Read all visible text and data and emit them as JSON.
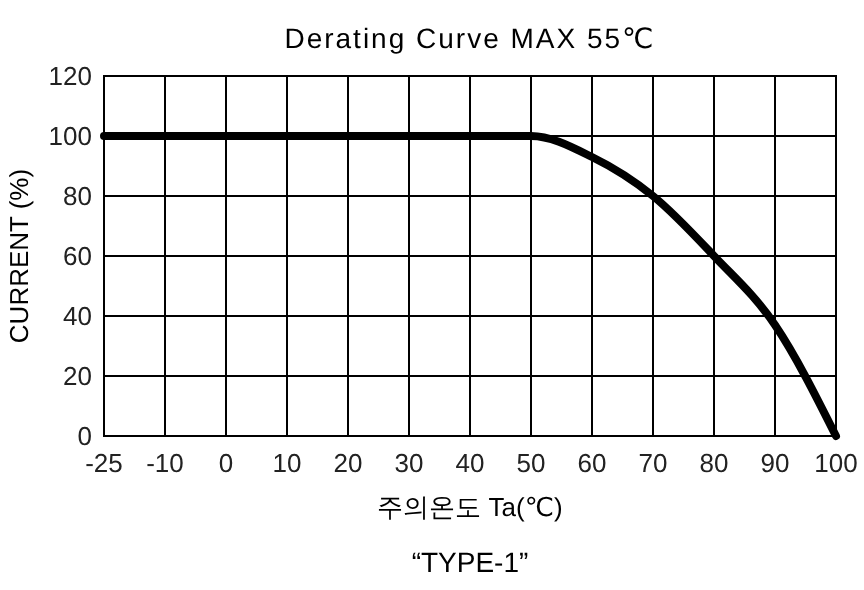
{
  "chart_data": {
    "type": "line",
    "title": "Derating Curve MAX 55℃",
    "xlabel": "주의온도 Ta(℃)",
    "ylabel": "CURRENT (%)",
    "annotations": [
      "“TYPE-1”"
    ],
    "categories": [
      "-25",
      "-10",
      "0",
      "10",
      "20",
      "30",
      "40",
      "50",
      "60",
      "70",
      "80",
      "90",
      "100"
    ],
    "series": [
      {
        "color": "#000000",
        "values": [
          100,
          100,
          100,
          100,
          100,
          100,
          100,
          100,
          93,
          80,
          60,
          37,
          0
        ]
      }
    ],
    "ylim": [
      0,
      120
    ],
    "yticks": [
      0,
      20,
      40,
      60,
      80,
      100,
      120
    ],
    "grid": true,
    "marker": "none",
    "line_style": "solid"
  }
}
